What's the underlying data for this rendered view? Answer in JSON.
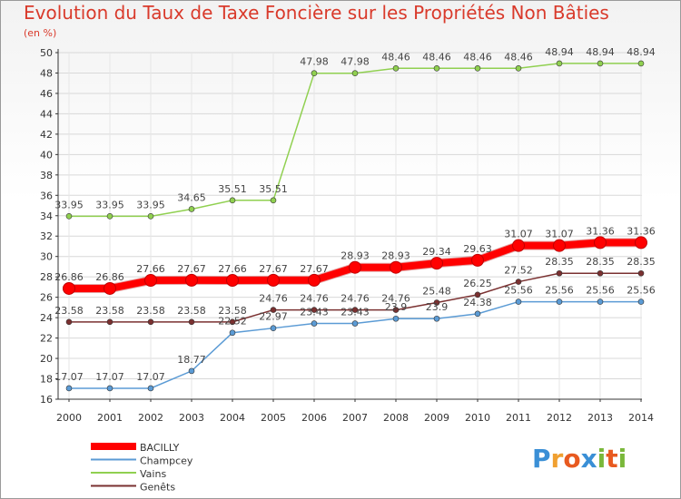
{
  "title": "Evolution du Taux de Taxe Foncière sur les Propriétés Non Bâties",
  "subtitle": "(en %)",
  "logo": {
    "letters": [
      "P",
      "r",
      "o",
      "x",
      "i",
      "t",
      "i"
    ],
    "colors": [
      "#3a8fd6",
      "#f0a030",
      "#e85a20",
      "#3a8fd6",
      "#7ab83a",
      "#e85a20",
      "#7ab83a"
    ]
  },
  "chart_data": {
    "type": "line",
    "x": [
      "2000",
      "2001",
      "2002",
      "2003",
      "2004",
      "2005",
      "2006",
      "2007",
      "2008",
      "2009",
      "2010",
      "2011",
      "2012",
      "2013",
      "2014"
    ],
    "ylim": [
      16,
      50
    ],
    "yticks": [
      16,
      18,
      20,
      22,
      24,
      26,
      28,
      30,
      32,
      34,
      36,
      38,
      40,
      42,
      44,
      46,
      48,
      50
    ],
    "grid": true,
    "legend": "bottom-left",
    "series": [
      {
        "name": "BACILLY",
        "color": "#ff0000",
        "values": [
          26.86,
          26.86,
          27.66,
          27.67,
          27.66,
          27.67,
          27.67,
          28.93,
          28.93,
          29.34,
          29.63,
          31.07,
          31.07,
          31.36,
          31.36
        ],
        "labels": [
          "26.86",
          "26.86",
          "27.66",
          "27.67",
          "27.66",
          "27.67",
          "27.67",
          "28.93",
          "28.93",
          "29.34",
          "29.63",
          "31.07",
          "31.07",
          "31.36",
          "31.36"
        ]
      },
      {
        "name": "Champcey",
        "color": "#5b9bd5",
        "values": [
          17.07,
          17.07,
          17.07,
          18.77,
          22.52,
          22.97,
          23.43,
          23.43,
          23.9,
          23.9,
          24.38,
          25.56,
          25.56,
          25.56,
          25.56
        ],
        "labels": [
          "17.07",
          "17.07",
          "17.07",
          "18.77",
          "22.52",
          "22.97",
          "23.43",
          "23.43",
          "23.9",
          "23.9",
          "24.38",
          "25.56",
          "25.56",
          "25.56",
          "25.56"
        ]
      },
      {
        "name": "Vains",
        "color": "#90d050",
        "values": [
          33.95,
          33.95,
          33.95,
          34.65,
          35.51,
          35.51,
          47.98,
          47.98,
          48.46,
          48.46,
          48.46,
          48.46,
          48.94,
          48.94,
          48.94
        ],
        "labels": [
          "33.95",
          "33.95",
          "33.95",
          "34.65",
          "35.51",
          "35.51",
          "47.98",
          "47.98",
          "48.46",
          "48.46",
          "48.46",
          "48.46",
          "48.94",
          "48.94",
          "48.94"
        ]
      },
      {
        "name": "Genêts",
        "color": "#7a3030",
        "values": [
          23.58,
          23.58,
          23.58,
          23.58,
          23.58,
          24.76,
          24.76,
          24.76,
          24.76,
          25.48,
          26.25,
          27.52,
          28.35,
          28.35,
          28.35
        ],
        "labels": [
          "23.58",
          "23.58",
          "23.58",
          "23.58",
          "23.58",
          "24.76",
          "24.76",
          "24.76",
          "24.76",
          "25.48",
          "26.25",
          "27.52",
          "28.35",
          "28.35",
          "28.35"
        ]
      }
    ]
  }
}
